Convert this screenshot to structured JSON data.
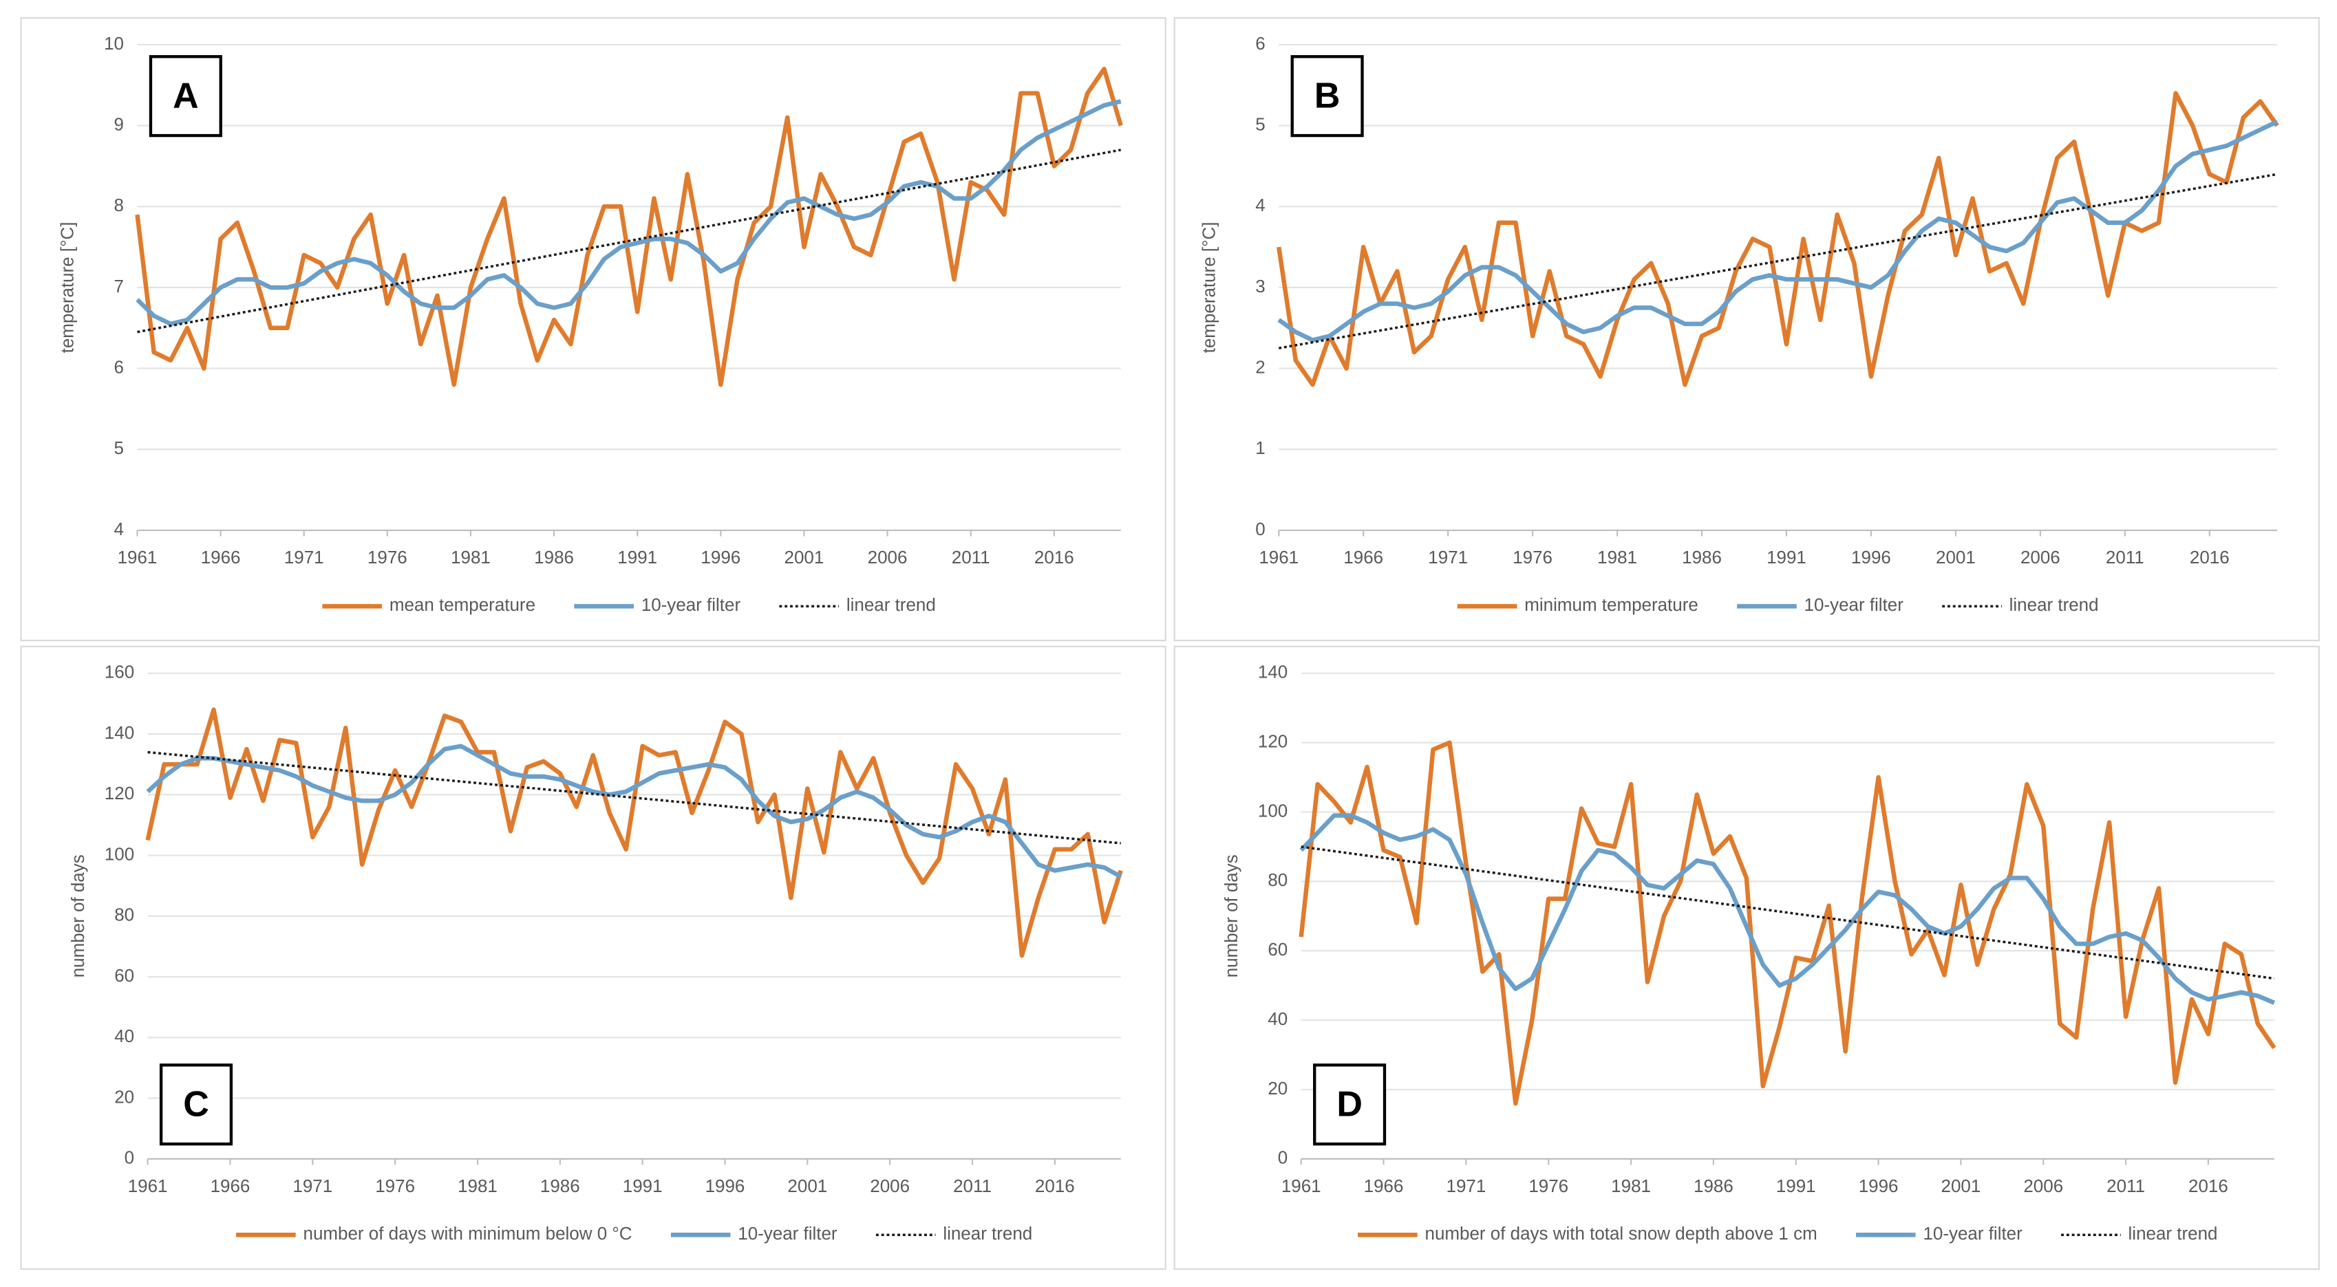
{
  "chart_data": [
    {
      "type": "line",
      "panel_label": "A",
      "label_corner": "top-left",
      "ylabel": "temperature [°C]",
      "legend": "bottom",
      "grid": true,
      "x": [
        1961,
        1962,
        1963,
        1964,
        1965,
        1966,
        1967,
        1968,
        1969,
        1970,
        1971,
        1972,
        1973,
        1974,
        1975,
        1976,
        1977,
        1978,
        1979,
        1980,
        1981,
        1982,
        1983,
        1984,
        1985,
        1986,
        1987,
        1988,
        1989,
        1990,
        1991,
        1992,
        1993,
        1994,
        1995,
        1996,
        1997,
        1998,
        1999,
        2000,
        2001,
        2002,
        2003,
        2004,
        2005,
        2006,
        2007,
        2008,
        2009,
        2010,
        2011,
        2012,
        2013,
        2014,
        2015,
        2016,
        2017,
        2018,
        2019,
        2020
      ],
      "xlim": [
        1961,
        2020
      ],
      "xticks": [
        1961,
        1966,
        1971,
        1976,
        1981,
        1986,
        1991,
        1996,
        2001,
        2006,
        2011,
        2016
      ],
      "ylim": [
        4,
        10
      ],
      "yticks": [
        4,
        5,
        6,
        7,
        8,
        9,
        10
      ],
      "series": [
        {
          "name": "mean temperature",
          "color": "#e07b2c",
          "values": [
            7.9,
            6.2,
            6.1,
            6.5,
            6.0,
            7.6,
            7.8,
            7.2,
            6.5,
            6.5,
            7.4,
            7.3,
            7.0,
            7.6,
            7.9,
            6.8,
            7.4,
            6.3,
            6.9,
            5.8,
            7.0,
            7.6,
            8.1,
            6.8,
            6.1,
            6.6,
            6.3,
            7.4,
            8.0,
            8.0,
            6.7,
            8.1,
            7.1,
            8.4,
            7.3,
            5.8,
            7.1,
            7.8,
            8.0,
            9.1,
            7.5,
            8.4,
            8.0,
            7.5,
            7.4,
            8.1,
            8.8,
            8.9,
            8.3,
            7.1,
            8.3,
            8.2,
            7.9,
            9.4,
            9.4,
            8.5,
            8.7,
            9.4,
            9.7,
            9.0
          ]
        },
        {
          "name": "10-year filter",
          "color": "#6a9fca",
          "values": [
            6.85,
            6.65,
            6.55,
            6.6,
            6.8,
            7.0,
            7.1,
            7.1,
            7.0,
            7.0,
            7.05,
            7.2,
            7.3,
            7.35,
            7.3,
            7.15,
            6.95,
            6.8,
            6.75,
            6.75,
            6.9,
            7.1,
            7.15,
            7.0,
            6.8,
            6.75,
            6.8,
            7.05,
            7.35,
            7.5,
            7.55,
            7.6,
            7.6,
            7.55,
            7.4,
            7.2,
            7.3,
            7.6,
            7.85,
            8.05,
            8.1,
            8.0,
            7.9,
            7.85,
            7.9,
            8.05,
            8.25,
            8.3,
            8.25,
            8.1,
            8.1,
            8.25,
            8.45,
            8.7,
            8.85,
            8.95,
            9.05,
            9.15,
            9.25,
            9.3
          ]
        },
        {
          "name": "linear trend",
          "color": "#1a1a1a",
          "dash": "dotted",
          "x": [
            1961,
            2020
          ],
          "values": [
            6.45,
            8.7
          ]
        }
      ]
    },
    {
      "type": "line",
      "panel_label": "B",
      "label_corner": "top-left",
      "ylabel": "temperature [°C]",
      "legend": "bottom",
      "grid": true,
      "x": [
        1961,
        1962,
        1963,
        1964,
        1965,
        1966,
        1967,
        1968,
        1969,
        1970,
        1971,
        1972,
        1973,
        1974,
        1975,
        1976,
        1977,
        1978,
        1979,
        1980,
        1981,
        1982,
        1983,
        1984,
        1985,
        1986,
        1987,
        1988,
        1989,
        1990,
        1991,
        1992,
        1993,
        1994,
        1995,
        1996,
        1997,
        1998,
        1999,
        2000,
        2001,
        2002,
        2003,
        2004,
        2005,
        2006,
        2007,
        2008,
        2009,
        2010,
        2011,
        2012,
        2013,
        2014,
        2015,
        2016,
        2017,
        2018,
        2019,
        2020
      ],
      "xlim": [
        1961,
        2020
      ],
      "xticks": [
        1961,
        1966,
        1971,
        1976,
        1981,
        1986,
        1991,
        1996,
        2001,
        2006,
        2011,
        2016
      ],
      "ylim": [
        0,
        6
      ],
      "yticks": [
        0,
        1,
        2,
        3,
        4,
        5,
        6
      ],
      "series": [
        {
          "name": "minimum temperature",
          "color": "#e07b2c",
          "values": [
            3.5,
            2.1,
            1.8,
            2.4,
            2.0,
            3.5,
            2.8,
            3.2,
            2.2,
            2.4,
            3.1,
            3.5,
            2.6,
            3.8,
            3.8,
            2.4,
            3.2,
            2.4,
            2.3,
            1.9,
            2.6,
            3.1,
            3.3,
            2.8,
            1.8,
            2.4,
            2.5,
            3.2,
            3.6,
            3.5,
            2.3,
            3.6,
            2.6,
            3.9,
            3.3,
            1.9,
            2.9,
            3.7,
            3.9,
            4.6,
            3.4,
            4.1,
            3.2,
            3.3,
            2.8,
            3.8,
            4.6,
            4.8,
            3.9,
            2.9,
            3.8,
            3.7,
            3.8,
            5.4,
            5.0,
            4.4,
            4.3,
            5.1,
            5.3,
            5.0
          ]
        },
        {
          "name": "10-year filter",
          "color": "#6a9fca",
          "values": [
            2.6,
            2.45,
            2.35,
            2.4,
            2.55,
            2.7,
            2.8,
            2.8,
            2.75,
            2.8,
            2.95,
            3.15,
            3.25,
            3.25,
            3.15,
            2.95,
            2.75,
            2.55,
            2.45,
            2.5,
            2.65,
            2.75,
            2.75,
            2.65,
            2.55,
            2.55,
            2.7,
            2.95,
            3.1,
            3.15,
            3.1,
            3.1,
            3.1,
            3.1,
            3.05,
            3.0,
            3.15,
            3.45,
            3.7,
            3.85,
            3.8,
            3.65,
            3.5,
            3.45,
            3.55,
            3.8,
            4.05,
            4.1,
            3.95,
            3.8,
            3.8,
            3.95,
            4.2,
            4.5,
            4.65,
            4.7,
            4.75,
            4.85,
            4.95,
            5.05
          ]
        },
        {
          "name": "linear trend",
          "color": "#1a1a1a",
          "dash": "dotted",
          "x": [
            1961,
            2020
          ],
          "values": [
            2.25,
            4.4
          ]
        }
      ]
    },
    {
      "type": "line",
      "panel_label": "C",
      "label_corner": "bottom-left",
      "ylabel": "number of days",
      "legend": "bottom",
      "grid": true,
      "x": [
        1961,
        1962,
        1963,
        1964,
        1965,
        1966,
        1967,
        1968,
        1969,
        1970,
        1971,
        1972,
        1973,
        1974,
        1975,
        1976,
        1977,
        1978,
        1979,
        1980,
        1981,
        1982,
        1983,
        1984,
        1985,
        1986,
        1987,
        1988,
        1989,
        1990,
        1991,
        1992,
        1993,
        1994,
        1995,
        1996,
        1997,
        1998,
        1999,
        2000,
        2001,
        2002,
        2003,
        2004,
        2005,
        2006,
        2007,
        2008,
        2009,
        2010,
        2011,
        2012,
        2013,
        2014,
        2015,
        2016,
        2017,
        2018,
        2019,
        2020
      ],
      "xlim": [
        1961,
        2020
      ],
      "xticks": [
        1961,
        1966,
        1971,
        1976,
        1981,
        1986,
        1991,
        1996,
        2001,
        2006,
        2011,
        2016
      ],
      "ylim": [
        0,
        160
      ],
      "yticks": [
        0,
        20,
        40,
        60,
        80,
        100,
        120,
        140,
        160
      ],
      "series": [
        {
          "name": "number of days with minimum below 0 °C",
          "color": "#e07b2c",
          "values": [
            105,
            130,
            130,
            130,
            148,
            119,
            135,
            118,
            138,
            137,
            106,
            116,
            142,
            97,
            115,
            128,
            116,
            130,
            146,
            144,
            134,
            134,
            108,
            129,
            131,
            127,
            116,
            133,
            114,
            102,
            136,
            133,
            134,
            114,
            128,
            144,
            140,
            111,
            120,
            86,
            122,
            101,
            134,
            122,
            132,
            114,
            100,
            91,
            99,
            130,
            122,
            107,
            125,
            67,
            86,
            102,
            102,
            107,
            78,
            95
          ]
        },
        {
          "name": "10-year filter",
          "color": "#6a9fca",
          "values": [
            121,
            126,
            130,
            132,
            132,
            131,
            130,
            129,
            128,
            126,
            123,
            121,
            119,
            118,
            118,
            120,
            124,
            130,
            135,
            136,
            133,
            130,
            127,
            126,
            126,
            125,
            123,
            121,
            120,
            121,
            124,
            127,
            128,
            129,
            130,
            129,
            125,
            118,
            113,
            111,
            112,
            115,
            119,
            121,
            119,
            115,
            110,
            107,
            106,
            108,
            111,
            113,
            111,
            104,
            97,
            95,
            96,
            97,
            96,
            93
          ]
        },
        {
          "name": "linear trend",
          "color": "#1a1a1a",
          "dash": "dotted",
          "x": [
            1961,
            2020
          ],
          "values": [
            134,
            104
          ]
        }
      ]
    },
    {
      "type": "line",
      "panel_label": "D",
      "label_corner": "bottom-left",
      "ylabel": "number of days",
      "legend": "bottom",
      "grid": true,
      "x": [
        1961,
        1962,
        1963,
        1964,
        1965,
        1966,
        1967,
        1968,
        1969,
        1970,
        1971,
        1972,
        1973,
        1974,
        1975,
        1976,
        1977,
        1978,
        1979,
        1980,
        1981,
        1982,
        1983,
        1984,
        1985,
        1986,
        1987,
        1988,
        1989,
        1990,
        1991,
        1992,
        1993,
        1994,
        1995,
        1996,
        1997,
        1998,
        1999,
        2000,
        2001,
        2002,
        2003,
        2004,
        2005,
        2006,
        2007,
        2008,
        2009,
        2010,
        2011,
        2012,
        2013,
        2014,
        2015,
        2016,
        2017,
        2018,
        2019,
        2020
      ],
      "xlim": [
        1961,
        2020
      ],
      "xticks": [
        1961,
        1966,
        1971,
        1976,
        1981,
        1986,
        1991,
        1996,
        2001,
        2006,
        2011,
        2016
      ],
      "ylim": [
        0,
        140
      ],
      "yticks": [
        0,
        20,
        40,
        60,
        80,
        100,
        120,
        140
      ],
      "series": [
        {
          "name": "number of days with total snow depth above 1 cm",
          "color": "#e07b2c",
          "values": [
            64,
            108,
            103,
            97,
            113,
            89,
            87,
            68,
            118,
            120,
            85,
            54,
            59,
            16,
            40,
            75,
            75,
            101,
            91,
            90,
            108,
            51,
            70,
            80,
            105,
            88,
            93,
            81,
            21,
            38,
            58,
            57,
            73,
            31,
            75,
            110,
            80,
            59,
            66,
            53,
            79,
            56,
            72,
            82,
            108,
            96,
            39,
            35,
            72,
            97,
            41,
            63,
            78,
            22,
            46,
            36,
            62,
            59,
            39,
            32
          ]
        },
        {
          "name": "10-year filter",
          "color": "#6a9fca",
          "values": [
            89,
            94,
            99,
            99,
            97,
            94,
            92,
            93,
            95,
            92,
            82,
            68,
            55,
            49,
            52,
            62,
            72,
            83,
            89,
            88,
            84,
            79,
            78,
            82,
            86,
            85,
            78,
            67,
            56,
            50,
            52,
            56,
            61,
            66,
            72,
            77,
            76,
            72,
            67,
            65,
            67,
            72,
            78,
            81,
            81,
            75,
            67,
            62,
            62,
            64,
            65,
            63,
            58,
            52,
            48,
            46,
            47,
            48,
            47,
            45
          ]
        },
        {
          "name": "linear trend",
          "color": "#1a1a1a",
          "dash": "dotted",
          "x": [
            1961,
            2020
          ],
          "values": [
            90,
            52
          ]
        }
      ]
    }
  ]
}
